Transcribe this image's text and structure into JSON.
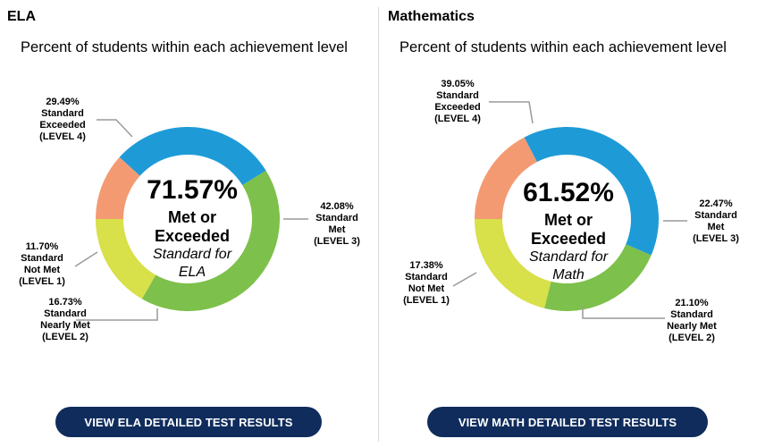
{
  "ela": {
    "title": "ELA",
    "subtitle": "Percent of students within each achievement level",
    "center_pct": "71.57%",
    "center_line1": "Met or",
    "center_line2": "Exceeded",
    "center_ital1": "Standard for",
    "center_ital2": "ELA",
    "button_label": "VIEW ELA DETAILED TEST RESULTS",
    "labels": {
      "l4": [
        "29.49%",
        "Standard",
        "Exceeded",
        "(LEVEL 4)"
      ],
      "l3": [
        "42.08%",
        "Standard",
        "Met",
        "(LEVEL 3)"
      ],
      "l2": [
        "16.73%",
        "Standard",
        "Nearly Met",
        "(LEVEL 2)"
      ],
      "l1": [
        "11.70%",
        "Standard",
        "Not Met",
        "(LEVEL 1)"
      ]
    }
  },
  "math": {
    "title": "Mathematics",
    "subtitle": "Percent of students within each achievement level",
    "center_pct": "61.52%",
    "center_line1": "Met or",
    "center_line2": "Exceeded",
    "center_ital1": "Standard for",
    "center_ital2": "Math",
    "button_label": "VIEW MATH DETAILED TEST RESULTS",
    "labels": {
      "l4": [
        "39.05%",
        "Standard",
        "Exceeded",
        "(LEVEL 4)"
      ],
      "l3": [
        "22.47%",
        "Standard",
        "Met",
        "(LEVEL 3)"
      ],
      "l2": [
        "21.10%",
        "Standard",
        "Nearly Met",
        "(LEVEL 2)"
      ],
      "l1": [
        "17.38%",
        "Standard",
        "Not Met",
        "(LEVEL 1)"
      ]
    }
  },
  "colors": {
    "level4": "#1e9bd7",
    "level3": "#7dc04b",
    "level2": "#d8e04a",
    "level1": "#f49a72",
    "button": "#0f2c5c",
    "leader": "#9a9a9a"
  },
  "chart_data": [
    {
      "type": "pie",
      "title": "ELA",
      "subtitle": "Percent of students within each achievement level",
      "categories": [
        "Standard Exceeded (LEVEL 4)",
        "Standard Met (LEVEL 3)",
        "Standard Nearly Met (LEVEL 2)",
        "Standard Not Met (LEVEL 1)"
      ],
      "values": [
        29.49,
        42.08,
        16.73,
        11.7
      ],
      "center_value": 71.57
    },
    {
      "type": "pie",
      "title": "Mathematics",
      "subtitle": "Percent of students within each achievement level",
      "categories": [
        "Standard Exceeded (LEVEL 4)",
        "Standard Met (LEVEL 3)",
        "Standard Nearly Met (LEVEL 2)",
        "Standard Not Met (LEVEL 1)"
      ],
      "values": [
        39.05,
        22.47,
        21.1,
        17.38
      ],
      "center_value": 61.52
    }
  ]
}
